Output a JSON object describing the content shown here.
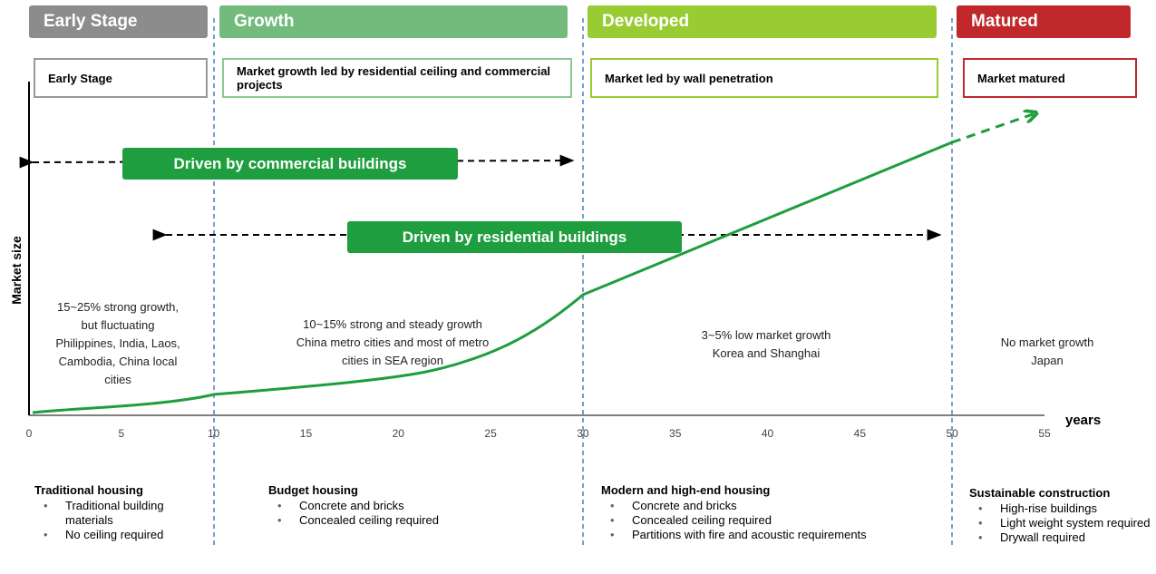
{
  "stages": [
    {
      "title": "Early Stage",
      "description": "Early Stage",
      "growth": [
        "15~25% strong growth,",
        "but fluctuating",
        "Philippines, India, Laos,",
        "Cambodia, China local",
        "cities"
      ],
      "housing": {
        "title": "Traditional housing",
        "items": [
          "Traditional building materials",
          "No ceiling required"
        ]
      }
    },
    {
      "title": "Growth",
      "description": "Market growth led by residential ceiling and commercial projects",
      "growth": [
        "10~15% strong and steady growth",
        "China metro cities and most of metro",
        "cities in SEA region"
      ],
      "housing": {
        "title": "Budget housing",
        "items": [
          "Concrete and bricks",
          "Concealed ceiling required"
        ]
      }
    },
    {
      "title": "Developed",
      "description": "Market led by wall penetration",
      "growth": [
        "3~5% low market growth",
        "Korea and Shanghai"
      ],
      "housing": {
        "title": "Modern and high-end housing",
        "items": [
          "Concrete and bricks",
          "Concealed ceiling required",
          "Partitions with fire and acoustic requirements"
        ]
      }
    },
    {
      "title": "Matured",
      "description": "Market matured",
      "growth": [
        "No market growth",
        "Japan"
      ],
      "housing": {
        "title": "Sustainable construction",
        "items": [
          "High-rise buildings",
          "Light weight system required",
          "Drywall required"
        ]
      }
    }
  ],
  "drivers": [
    "Driven by commercial buildings",
    "Driven by residential buildings"
  ],
  "y_axis_label": "Market size",
  "x_axis_label": "years",
  "x_ticks": [
    0,
    5,
    10,
    15,
    20,
    25,
    30,
    35,
    40,
    45,
    50,
    55
  ]
}
